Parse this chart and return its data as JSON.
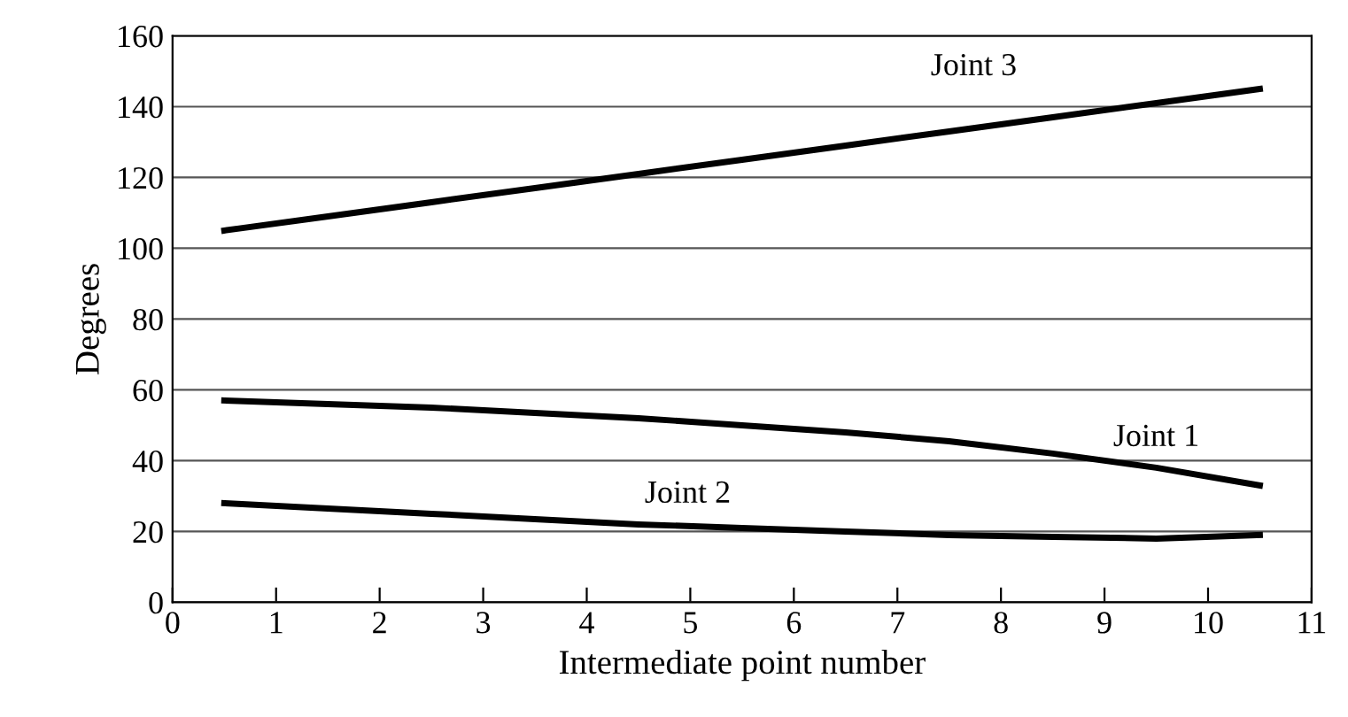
{
  "chart_data": {
    "type": "line",
    "xlabel": "Intermediate point number",
    "ylabel": "Degrees",
    "x": [
      0.5,
      1.5,
      2.5,
      3.5,
      4.5,
      5.5,
      6.5,
      7.5,
      8.5,
      9.5,
      10.5
    ],
    "series": [
      {
        "name": "Joint 1",
        "color": "#000000",
        "values": [
          57,
          56,
          55,
          53.5,
          52,
          50,
          48,
          45.5,
          42,
          38,
          33
        ]
      },
      {
        "name": "Joint 2",
        "color": "#000000",
        "values": [
          28,
          26.5,
          25,
          23.5,
          22,
          21,
          20,
          19,
          18.5,
          18,
          19
        ]
      },
      {
        "name": "Joint 3",
        "color": "#000000",
        "values": [
          105,
          109,
          113,
          117,
          121,
          125,
          129,
          133,
          137,
          141,
          145
        ]
      }
    ],
    "xlim": [
      0,
      11
    ],
    "xticks": [
      0,
      1,
      2,
      3,
      4,
      5,
      6,
      7,
      8,
      9,
      10,
      11
    ],
    "ylim": [
      0,
      160
    ],
    "yticks": [
      0,
      20,
      40,
      60,
      80,
      100,
      120,
      140,
      160
    ],
    "grid": "y",
    "legend": false,
    "marker": "none",
    "line_style": "solid"
  }
}
